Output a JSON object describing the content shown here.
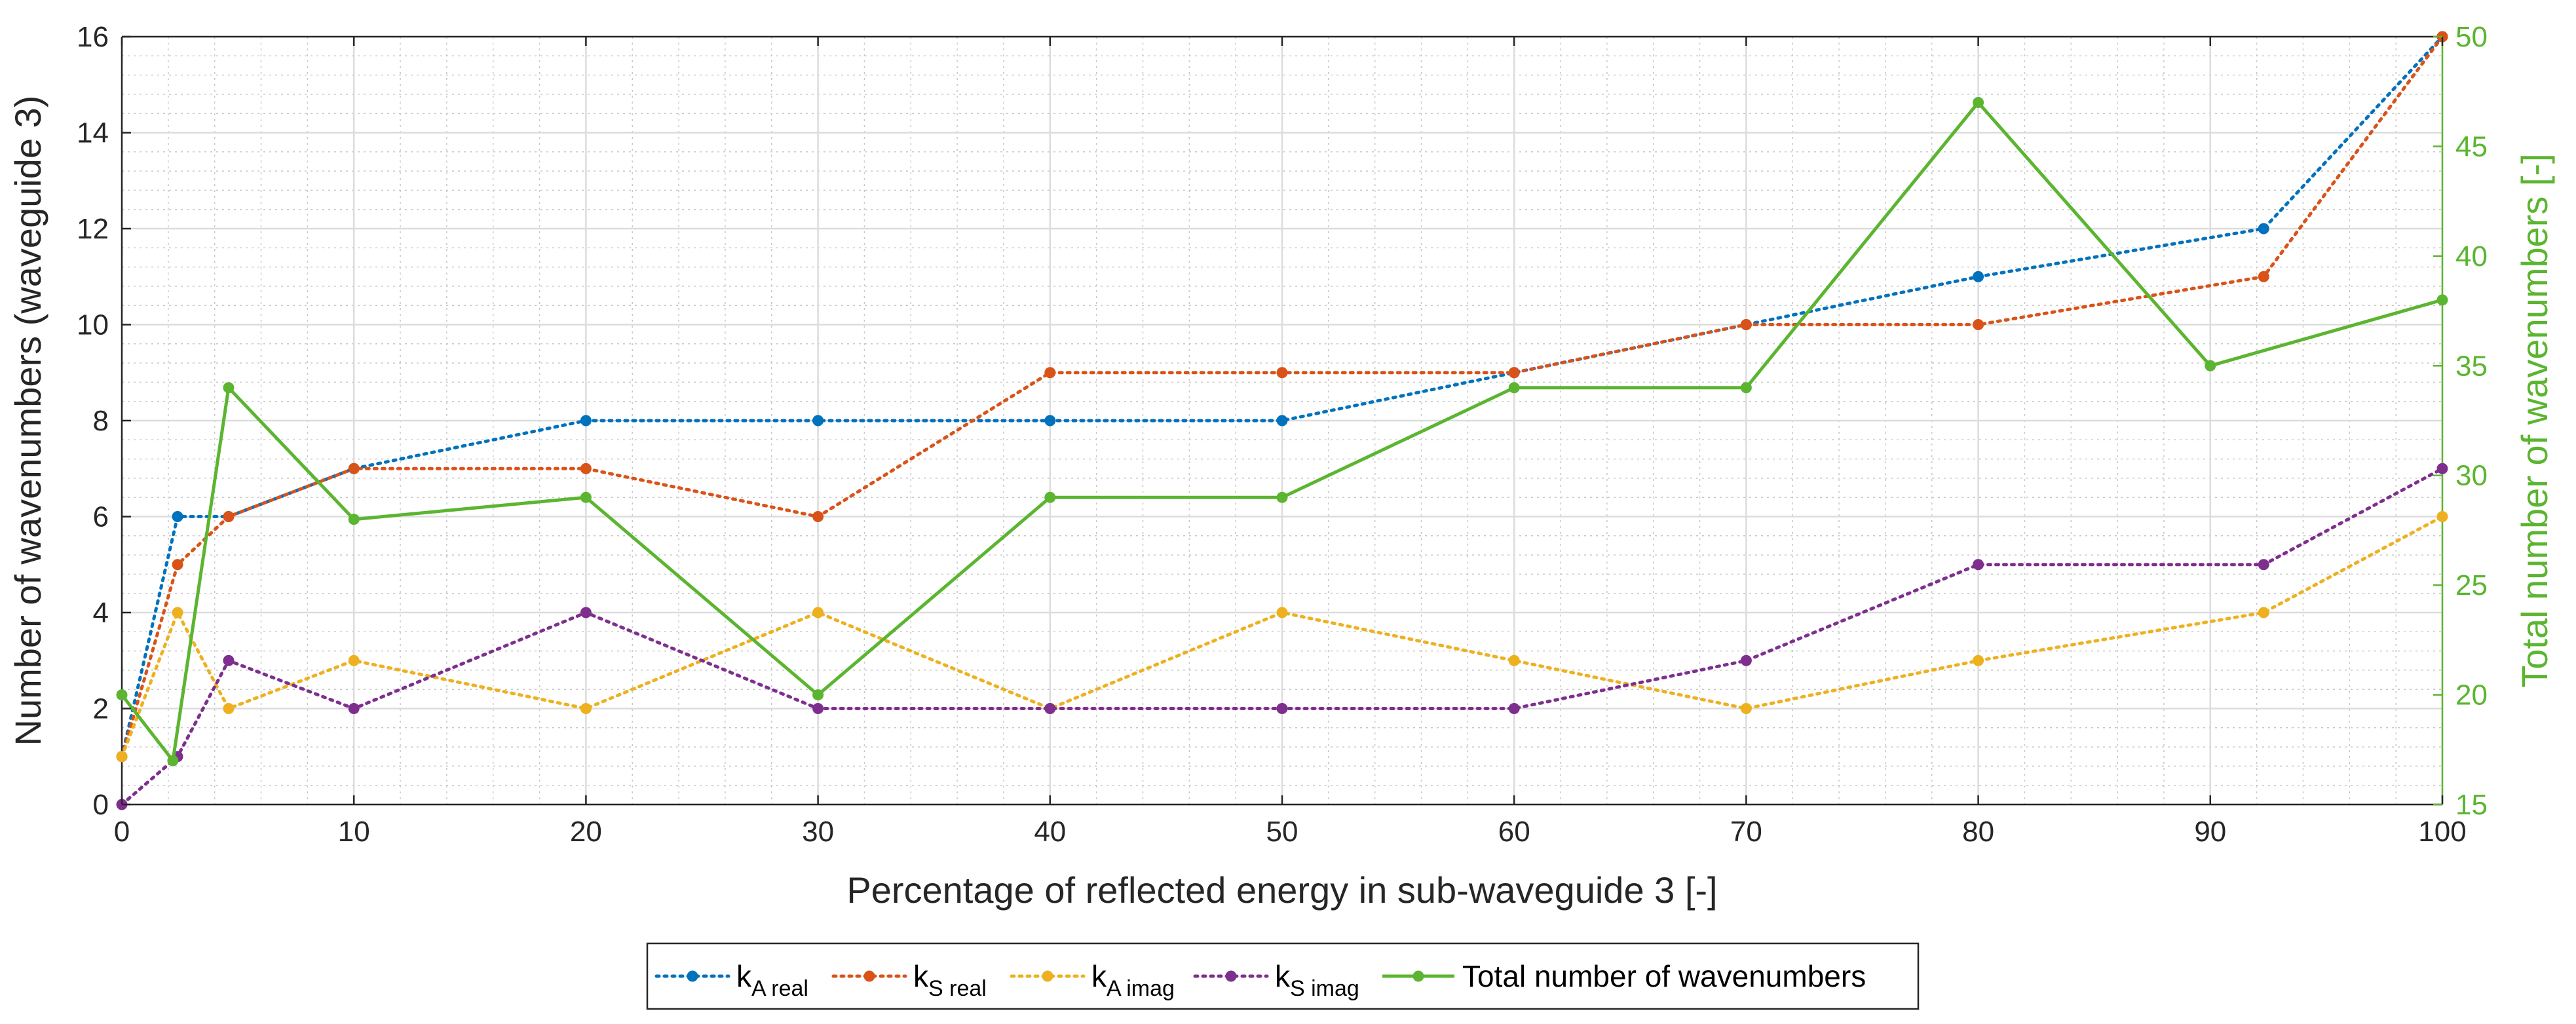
{
  "chart_data": {
    "type": "line",
    "xlabel": "Percentage of reflected energy in sub-waveguide 3 [-]",
    "ylabel_left": "Number of wavenumbers (waveguide 3)",
    "ylabel_right": "Total number of wavenumbers [-]",
    "xlim": [
      0,
      100
    ],
    "ylim_left": [
      0,
      16
    ],
    "ylim_right": [
      15,
      50
    ],
    "x_ticks": [
      0,
      10,
      20,
      30,
      40,
      50,
      60,
      70,
      80,
      90,
      100
    ],
    "y_ticks_left": [
      0,
      2,
      4,
      6,
      8,
      10,
      12,
      14,
      16
    ],
    "y_ticks_right": [
      15,
      20,
      25,
      30,
      35,
      40,
      45,
      50
    ],
    "grid": true,
    "minor_grid": true,
    "legend_placement": "bottom-outside",
    "series": [
      {
        "name_main": "k",
        "name_sub": "A real",
        "axis": "left",
        "style": "dotted",
        "color": "#0072bd",
        "x": [
          0,
          2.4,
          4.6,
          10,
          20,
          30,
          40,
          50,
          60,
          70,
          80,
          92.3,
          100
        ],
        "y": [
          1,
          6,
          6,
          7,
          8,
          8,
          8,
          8,
          9,
          10,
          11,
          12,
          16
        ]
      },
      {
        "name_main": "k",
        "name_sub": "S real",
        "axis": "left",
        "style": "dotted",
        "color": "#d95319",
        "x": [
          0,
          2.4,
          4.6,
          10,
          20,
          30,
          40,
          50,
          60,
          70,
          80,
          92.3,
          100
        ],
        "y": [
          1,
          5,
          6,
          7,
          7,
          6,
          9,
          9,
          9,
          10,
          10,
          11,
          16
        ]
      },
      {
        "name_main": "k",
        "name_sub": "A imag",
        "axis": "left",
        "style": "dotted",
        "color": "#edb120",
        "x": [
          0,
          2.4,
          4.6,
          10,
          20,
          30,
          40,
          50,
          60,
          70,
          80,
          92.3,
          100
        ],
        "y": [
          1,
          4,
          2,
          3,
          2,
          4,
          2,
          4,
          3,
          2,
          3,
          4,
          6
        ]
      },
      {
        "name_main": "k",
        "name_sub": "S imag",
        "axis": "left",
        "style": "dotted",
        "color": "#7e2f8e",
        "x": [
          0,
          2.4,
          4.6,
          10,
          20,
          30,
          40,
          50,
          60,
          70,
          80,
          92.3,
          100
        ],
        "y": [
          0,
          1,
          3,
          2,
          4,
          2,
          2,
          2,
          2,
          3,
          5,
          5,
          7
        ]
      },
      {
        "name_main": "Total number of wavenumbers",
        "name_sub": "",
        "axis": "right",
        "style": "solid",
        "color": "#5bb530",
        "x": [
          0,
          2.2,
          4.6,
          10,
          20,
          30,
          40,
          50,
          60,
          70,
          80,
          90,
          100
        ],
        "y": [
          20,
          17,
          34,
          28,
          29,
          20,
          29,
          29,
          34,
          34,
          47,
          35,
          38
        ]
      }
    ]
  }
}
